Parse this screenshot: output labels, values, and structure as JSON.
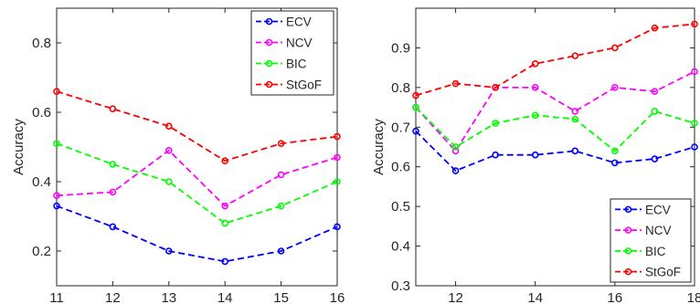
{
  "chart_data": [
    {
      "type": "line",
      "x": [
        11,
        12,
        13,
        14,
        15,
        16
      ],
      "xlim": [
        11,
        16
      ],
      "ylim": [
        0.1,
        0.9
      ],
      "xticks": [
        "11",
        "12",
        "13",
        "14",
        "15",
        "16"
      ],
      "yticks": [
        "0.2",
        "0.4",
        "0.6",
        "0.8"
      ],
      "xlabel": "",
      "ylabel": "Accuracy",
      "grid": false,
      "legend": "top-right",
      "series": [
        {
          "name": "ECV",
          "color": "#0000ff",
          "values": [
            0.33,
            0.27,
            0.2,
            0.17,
            0.2,
            0.27
          ]
        },
        {
          "name": "NCV",
          "color": "#ff00ff",
          "values": [
            0.36,
            0.37,
            0.49,
            0.33,
            0.42,
            0.47
          ]
        },
        {
          "name": "BIC",
          "color": "#00ff00",
          "values": [
            0.51,
            0.45,
            0.4,
            0.28,
            0.33,
            0.4
          ]
        },
        {
          "name": "StGoF",
          "color": "#ff0000",
          "values": [
            0.66,
            0.61,
            0.56,
            0.46,
            0.51,
            0.53
          ]
        }
      ]
    },
    {
      "type": "line",
      "x": [
        11,
        12,
        13,
        14,
        15,
        16,
        17,
        18
      ],
      "xlim": [
        11,
        18
      ],
      "ylim": [
        0.3,
        1.0
      ],
      "xticks": [
        "12",
        "14",
        "16",
        "18"
      ],
      "yticks": [
        "0.3",
        "0.4",
        "0.5",
        "0.6",
        "0.7",
        "0.8",
        "0.9"
      ],
      "xlabel": "",
      "ylabel": "Accuracy",
      "grid": false,
      "legend": "bottom-right",
      "series": [
        {
          "name": "ECV",
          "color": "#0000ff",
          "values": [
            0.69,
            0.59,
            0.63,
            0.63,
            0.64,
            0.61,
            0.62,
            0.65
          ]
        },
        {
          "name": "NCV",
          "color": "#ff00ff",
          "values": [
            0.75,
            0.64,
            0.8,
            0.8,
            0.74,
            0.8,
            0.79,
            0.84
          ]
        },
        {
          "name": "BIC",
          "color": "#00ff00",
          "values": [
            0.75,
            0.65,
            0.71,
            0.73,
            0.72,
            0.64,
            0.74,
            0.71
          ]
        },
        {
          "name": "StGoF",
          "color": "#ff0000",
          "values": [
            0.78,
            0.81,
            0.8,
            0.86,
            0.88,
            0.9,
            0.95,
            0.96
          ]
        }
      ]
    }
  ]
}
